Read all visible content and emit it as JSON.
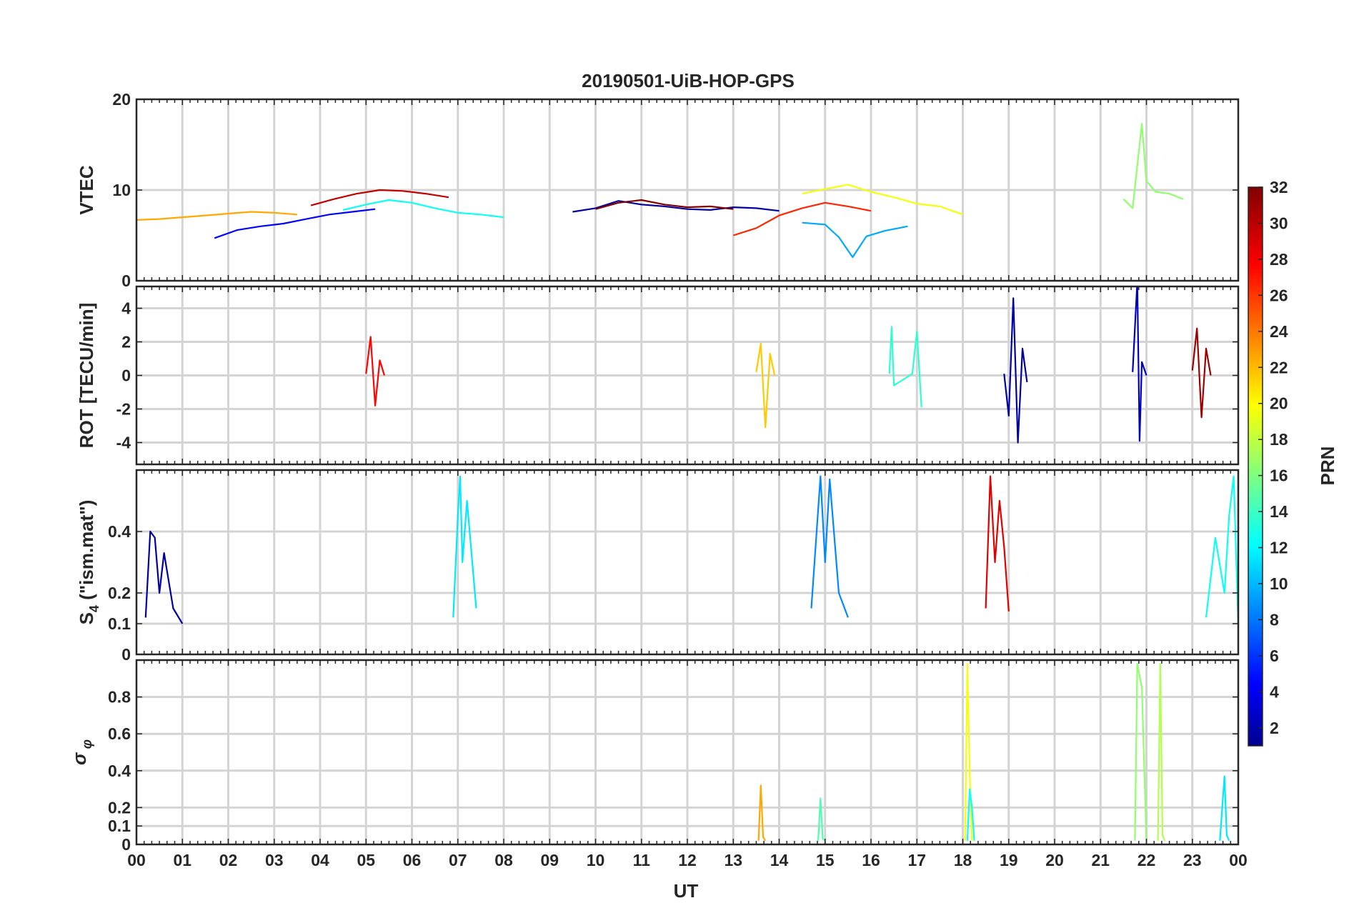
{
  "chart_data": {
    "type": "line",
    "title": "20190501-UiB-HOP-GPS",
    "xlabel": "UT",
    "x_tick_labels": [
      "00",
      "01",
      "02",
      "03",
      "04",
      "05",
      "06",
      "07",
      "08",
      "09",
      "10",
      "11",
      "12",
      "13",
      "14",
      "15",
      "16",
      "17",
      "18",
      "19",
      "20",
      "21",
      "22",
      "23",
      "00"
    ],
    "xlim": [
      0,
      24
    ],
    "grid": true,
    "colorbar": {
      "label": "PRN",
      "range": [
        1,
        32
      ],
      "tick_labels": [
        "2",
        "4",
        "6",
        "8",
        "10",
        "12",
        "14",
        "16",
        "18",
        "20",
        "22",
        "24",
        "26",
        "28",
        "30",
        "32"
      ],
      "colormap": "jet"
    },
    "panels": [
      {
        "ylabel": "VTEC",
        "ylim": [
          0,
          20
        ],
        "y_ticks": [
          0,
          10,
          20
        ],
        "y_tick_labels": [
          "0",
          "10",
          "20"
        ],
        "series": [
          {
            "name": "PRN 2",
            "prn": 2,
            "x": [
              9.5,
              10,
              10.5,
              11,
              11.5,
              12,
              12.5,
              13,
              13.5,
              14
            ],
            "values": [
              7.6,
              8.0,
              8.8,
              8.4,
              8.2,
              7.9,
              7.8,
              8.1,
              8.0,
              7.7
            ]
          },
          {
            "name": "PRN 5",
            "prn": 5,
            "x": [
              1.7,
              2.2,
              2.7,
              3.2,
              3.7,
              4.2,
              4.7,
              5.2
            ],
            "values": [
              4.7,
              5.6,
              6.0,
              6.3,
              6.8,
              7.3,
              7.6,
              7.9
            ]
          },
          {
            "name": "PRN 10",
            "prn": 10,
            "x": [
              14.5,
              15,
              15.3,
              15.6,
              15.9,
              16.3,
              16.8
            ],
            "values": [
              6.4,
              6.2,
              4.8,
              2.6,
              4.9,
              5.5,
              6.0
            ]
          },
          {
            "name": "PRN 13",
            "prn": 13,
            "x": [
              4.5,
              5,
              5.5,
              6,
              6.5,
              7,
              7.5,
              8
            ],
            "values": [
              7.8,
              8.4,
              8.9,
              8.6,
              8.0,
              7.5,
              7.3,
              7.0
            ]
          },
          {
            "name": "PRN 17",
            "prn": 17,
            "x": [
              21.5,
              21.7,
              21.9,
              22.0,
              22.2,
              22.5,
              22.8
            ],
            "values": [
              9.0,
              8.0,
              17.3,
              11.0,
              9.8,
              9.6,
              9.0
            ]
          },
          {
            "name": "PRN 20",
            "prn": 20,
            "x": [
              14.5,
              15,
              15.5,
              16,
              16.5,
              17,
              17.5,
              18
            ],
            "values": [
              9.6,
              10.1,
              10.6,
              9.8,
              9.2,
              8.5,
              8.2,
              7.3
            ]
          },
          {
            "name": "PRN 23",
            "prn": 23,
            "x": [
              0,
              0.5,
              1,
              1.5,
              2,
              2.5,
              3,
              3.5
            ],
            "values": [
              6.7,
              6.8,
              7.0,
              7.2,
              7.4,
              7.6,
              7.5,
              7.3
            ]
          },
          {
            "name": "PRN 27",
            "prn": 27,
            "x": [
              13.0,
              13.5,
              14,
              14.5,
              15,
              15.5,
              16
            ],
            "values": [
              5.0,
              5.8,
              7.2,
              8.0,
              8.6,
              8.2,
              7.7
            ]
          },
          {
            "name": "PRN 30",
            "prn": 30,
            "x": [
              3.8,
              4.3,
              4.8,
              5.3,
              5.8,
              6.3,
              6.8
            ],
            "values": [
              8.3,
              9.0,
              9.6,
              10.0,
              9.9,
              9.6,
              9.2
            ]
          },
          {
            "name": "PRN 32",
            "prn": 32,
            "x": [
              10.0,
              10.5,
              11,
              11.5,
              12,
              12.5,
              13
            ],
            "values": [
              7.9,
              8.6,
              8.9,
              8.4,
              8.1,
              8.2,
              7.9
            ]
          }
        ]
      },
      {
        "ylabel": "ROT [TECU/min]",
        "ylim": [
          -5.3,
          5.3
        ],
        "y_ticks": [
          -4,
          -2,
          0,
          2,
          4
        ],
        "y_tick_labels": [
          "-4",
          "-2",
          "0",
          "2",
          "4"
        ],
        "series": [
          {
            "name": "PRN 2",
            "prn": 2,
            "x": [
              18.9,
              19.0,
              19.1,
              19.2,
              19.3,
              19.4
            ],
            "values": [
              0.1,
              -2.4,
              4.6,
              -4.0,
              1.6,
              -0.4
            ]
          },
          {
            "name": "PRN 3",
            "prn": 3,
            "x": [
              21.7,
              21.8,
              21.85,
              21.9,
              22.0
            ],
            "values": [
              0.2,
              5.6,
              -3.9,
              0.8,
              0.0
            ]
          },
          {
            "name": "PRN 14",
            "prn": 14,
            "x": [
              16.4,
              16.45,
              16.5,
              16.9,
              17.0,
              17.1
            ],
            "values": [
              0.1,
              2.9,
              -0.6,
              0.1,
              2.6,
              -1.9
            ]
          },
          {
            "name": "PRN 22",
            "prn": 22,
            "x": [
              13.5,
              13.6,
              13.7,
              13.8,
              13.9
            ],
            "values": [
              0.2,
              1.9,
              -3.1,
              1.3,
              0.0
            ]
          },
          {
            "name": "PRN 28",
            "prn": 28,
            "x": [
              5.0,
              5.1,
              5.2,
              5.3,
              5.4
            ],
            "values": [
              0.1,
              2.3,
              -1.8,
              0.9,
              0.0
            ]
          },
          {
            "name": "PRN 31",
            "prn": 31,
            "x": [
              23.0,
              23.1,
              23.2,
              23.3,
              23.4
            ],
            "values": [
              0.3,
              2.8,
              -2.5,
              1.6,
              0.0
            ]
          }
        ]
      },
      {
        "ylabel": "S4 (\"ism.mat\")",
        "ylim": [
          0,
          0.6
        ],
        "y_ticks": [
          0,
          0.1,
          0.2,
          0.4
        ],
        "y_tick_labels": [
          "0",
          "0.1",
          "0.2",
          "0.4"
        ],
        "series": [
          {
            "name": "PRN 2",
            "prn": 2,
            "x": [
              0.2,
              0.3,
              0.4,
              0.5,
              0.6,
              0.8,
              1.0
            ],
            "values": [
              0.12,
              0.4,
              0.38,
              0.2,
              0.33,
              0.15,
              0.1
            ]
          },
          {
            "name": "PRN 12",
            "prn": 12,
            "x": [
              6.9,
              7.0,
              7.05,
              7.1,
              7.2,
              7.4
            ],
            "values": [
              0.12,
              0.45,
              0.58,
              0.3,
              0.5,
              0.15
            ]
          },
          {
            "name": "PRN 9",
            "prn": 9,
            "x": [
              14.7,
              14.9,
              15.0,
              15.1,
              15.3,
              15.5
            ],
            "values": [
              0.15,
              0.58,
              0.3,
              0.57,
              0.2,
              0.12
            ]
          },
          {
            "name": "PRN 29",
            "prn": 29,
            "x": [
              18.5,
              18.6,
              18.7,
              18.8,
              18.9,
              19.0
            ],
            "values": [
              0.15,
              0.58,
              0.3,
              0.5,
              0.35,
              0.14
            ]
          },
          {
            "name": "PRN 13",
            "prn": 13,
            "x": [
              23.3,
              23.5,
              23.7,
              23.8,
              23.9,
              24.0
            ],
            "values": [
              0.12,
              0.38,
              0.2,
              0.45,
              0.58,
              0.1
            ]
          }
        ]
      },
      {
        "ylabel": "σφ",
        "ylim": [
          0,
          1.0
        ],
        "y_ticks": [
          0,
          0.1,
          0.2,
          0.4,
          0.6,
          0.8
        ],
        "y_tick_labels": [
          "0",
          "0.1",
          "0.2",
          "0.4",
          "0.6",
          "0.8"
        ],
        "series": [
          {
            "name": "PRN 20",
            "prn": 20,
            "x": [
              18.05,
              18.1,
              18.15,
              18.2
            ],
            "values": [
              0.02,
              0.98,
              0.4,
              0.02
            ]
          },
          {
            "name": "PRN 13",
            "prn": 13,
            "x": [
              18.1,
              18.15,
              18.2,
              18.25
            ],
            "values": [
              0.02,
              0.3,
              0.2,
              0.02
            ]
          },
          {
            "name": "PRN 17",
            "prn": 17,
            "x": [
              21.75,
              21.8,
              21.9,
              22.0
            ],
            "values": [
              0.02,
              0.98,
              0.85,
              0.02
            ]
          },
          {
            "name": "PRN 18",
            "prn": 18,
            "x": [
              22.25,
              22.3,
              22.35,
              22.4
            ],
            "values": [
              0.02,
              0.98,
              0.05,
              0.02
            ]
          },
          {
            "name": "PRN 23",
            "prn": 23,
            "x": [
              13.55,
              13.6,
              13.65,
              13.7
            ],
            "values": [
              0.02,
              0.32,
              0.04,
              0.02
            ]
          },
          {
            "name": "PRN 15",
            "prn": 15,
            "x": [
              14.85,
              14.9,
              14.95,
              15.0
            ],
            "values": [
              0.02,
              0.25,
              0.03,
              0.02
            ]
          },
          {
            "name": "PRN 12",
            "prn": 12,
            "x": [
              23.6,
              23.7,
              23.75,
              23.8
            ],
            "values": [
              0.02,
              0.37,
              0.05,
              0.02
            ]
          }
        ]
      }
    ]
  }
}
